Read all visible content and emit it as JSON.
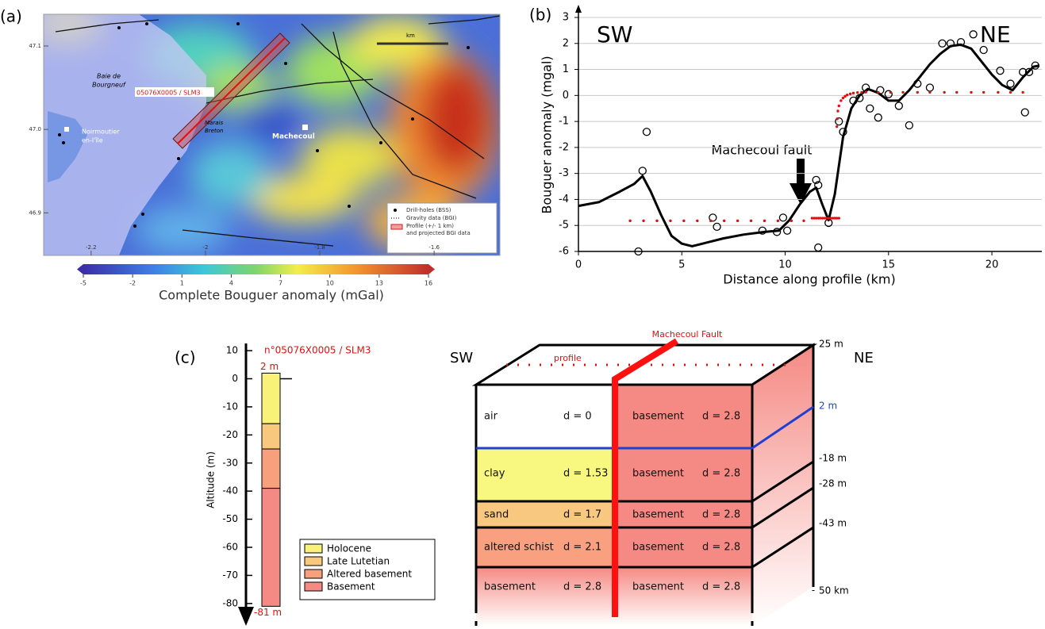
{
  "map": {
    "panel_label": "(a)",
    "bay_label": [
      "Baie de",
      "Bourgneuf"
    ],
    "well_label": "05076X0005 / SLM3",
    "island_label": [
      "Noirmoutier",
      "en-l'île"
    ],
    "marsh_label": [
      "Marais",
      "Breton"
    ],
    "town_label": "Machecoul",
    "scale_label": "km",
    "legend": [
      "Drill-holes (BSS)",
      "Gravity data (BGI)",
      "Profile (+/- 1 km)",
      "and projected BGI data"
    ],
    "lonlim": [
      -2.283,
      -1.485
    ],
    "lonticks": [
      -2.2,
      -2.0,
      -1.8,
      -1.6
    ],
    "latlim": [
      46.849,
      47.138
    ],
    "latticks": [
      47.1,
      {
        "value": 47,
        "label": "47.0"
      },
      46.9
    ],
    "colorbar": {
      "label": "Complete Bouguer anomaly (mGal)",
      "lim": [
        -5,
        16
      ],
      "ticks": [
        -5,
        -2,
        1,
        4,
        7,
        10,
        13,
        16
      ]
    }
  },
  "chart_data": {
    "type": "line",
    "panel_label": "(b)",
    "annotations": [
      "SW",
      "NE",
      "Machecoul fault"
    ],
    "x_label": "Distance along profile (km)",
    "y_label": "Bouguer anomaly (mgal)",
    "xlim": [
      0,
      22.3
    ],
    "xticks": [
      0,
      5,
      10,
      15,
      20
    ],
    "ylim": [
      -6,
      3
    ],
    "yticks": [
      -6,
      -5,
      -4,
      -3,
      -2,
      -1,
      0,
      1,
      2,
      3
    ],
    "grid": true,
    "series": [
      {
        "mode": "line",
        "color": "#000000",
        "x": [
          0,
          1,
          2,
          2.7,
          3.1,
          3.5,
          4,
          4.5,
          5,
          5.5,
          6,
          7,
          8,
          9,
          9.7,
          10.2,
          10.7,
          11.2,
          11.5,
          11.8,
          12.1,
          12.4,
          12.8,
          13.2,
          13.6,
          14,
          14.5,
          15,
          15.5,
          16,
          16.5,
          17,
          17.5,
          18,
          18.5,
          19,
          19.5,
          20,
          20.5,
          21,
          21.5,
          22,
          22.3
        ],
        "values": [
          -4.25,
          -4.1,
          -3.7,
          -3.4,
          -3.1,
          -3.7,
          -4.6,
          -5.4,
          -5.7,
          -5.8,
          -5.7,
          -5.5,
          -5.35,
          -5.25,
          -5.2,
          -4.8,
          -4.2,
          -3.7,
          -3.55,
          -4.2,
          -4.8,
          -3.8,
          -1.6,
          -0.5,
          0,
          0.25,
          0.1,
          -0.2,
          -0.2,
          0.2,
          0.7,
          1.2,
          1.6,
          1.9,
          1.95,
          1.8,
          1.3,
          0.8,
          0.4,
          0.2,
          0.7,
          1.1,
          1.15
        ]
      },
      {
        "mode": "circle",
        "color": "#000000",
        "x": [
          2.9,
          3.1,
          3.3,
          6.5,
          6.7,
          8.9,
          9.6,
          9.9,
          10.1,
          11.5,
          11.6,
          11.6,
          12.1,
          12.6,
          12.8,
          13.3,
          13.6,
          13.9,
          14.1,
          14.5,
          14.6,
          15.0,
          15.5,
          16.0,
          16.4,
          17.0,
          17.6,
          18.0,
          18.5,
          19.1,
          19.6,
          20.4,
          20.9,
          21.5,
          21.6,
          21.8,
          22.1
        ],
        "values": [
          -6.0,
          -2.9,
          -1.4,
          -4.7,
          -5.05,
          -5.2,
          -5.25,
          -4.7,
          -5.2,
          -3.25,
          -3.45,
          -5.85,
          -4.9,
          -1.0,
          -1.4,
          -0.2,
          -0.1,
          0.3,
          -0.5,
          -0.85,
          0.2,
          0.05,
          -0.4,
          -1.15,
          0.45,
          0.3,
          2.0,
          2.0,
          2.05,
          2.35,
          1.75,
          0.95,
          0.45,
          0.9,
          -0.65,
          0.9,
          1.15
        ]
      },
      {
        "mode": "dot",
        "color": "#e01010",
        "x": [
          2.5,
          3.15,
          3.8,
          4.45,
          5.1,
          5.75,
          6.4,
          7.05,
          7.7,
          8.35,
          9.0,
          9.65,
          10.3,
          10.9,
          11.3,
          11.4,
          11.5,
          11.6,
          11.7,
          11.8,
          11.9,
          12.0,
          12.1,
          12.2,
          12.3,
          12.4,
          12.5,
          12.6,
          12.5,
          12.52,
          12.55,
          12.6,
          12.7,
          12.8,
          12.9,
          13.0,
          13.15,
          13.3,
          13.5,
          13.7,
          13.9,
          14.5,
          15.1,
          15.7,
          16.4,
          17.0,
          17.7,
          18.3,
          19.0,
          19.6,
          20.3,
          20.9,
          21.5
        ],
        "values": [
          -4.82,
          -4.82,
          -4.82,
          -4.82,
          -4.82,
          -4.82,
          -4.82,
          -4.82,
          -4.82,
          -4.82,
          -4.82,
          -4.82,
          -4.82,
          -4.82,
          -4.72,
          -4.72,
          -4.72,
          -4.72,
          -4.72,
          -4.72,
          -4.72,
          -4.72,
          -4.72,
          -4.72,
          -4.72,
          -4.72,
          -4.72,
          -4.72,
          -1.2,
          -0.9,
          -0.6,
          -0.4,
          -0.2,
          -0.1,
          -0.03,
          0.02,
          0.06,
          0.09,
          0.11,
          0.12,
          0.13,
          0.12,
          0.12,
          0.12,
          0.12,
          0.12,
          0.12,
          0.12,
          0.12,
          0.12,
          0.12,
          0.12,
          0.12
        ]
      }
    ]
  },
  "diagram": {
    "panel_label": "(c)",
    "well": {
      "title": "n°05076X0005 / SLM3",
      "axis_label": "Altitude (m)",
      "ylim": [
        -84,
        12
      ],
      "yticks": [
        10,
        0,
        -10,
        -20,
        -30,
        -40,
        -50,
        -60,
        -70,
        -80
      ],
      "top_label": "2 m",
      "bottom_label": "-81 m",
      "layers": [
        {
          "name": "Holocene",
          "color": "#f8f27a",
          "top": 2,
          "bottom": -16
        },
        {
          "name": "Late Lutetian",
          "color": "#f8c87c",
          "top": -16,
          "bottom": -25
        },
        {
          "name": "Altered basement",
          "color": "#f8a07c",
          "top": -25,
          "bottom": -39
        },
        {
          "name": "Basement",
          "color": "#f58a84",
          "top": -39,
          "bottom": -81
        }
      ]
    },
    "block": {
      "left_label": "SW",
      "right_label": "NE",
      "fault_label": "Machecoul Fault",
      "profile_label": "profile",
      "rows": [
        [
          "air",
          "d = 0",
          "basement",
          "d = 2.8"
        ],
        [
          "clay",
          "d = 1.53",
          "basement",
          "d = 2.8"
        ],
        [
          "sand",
          "d = 1.7",
          "basement",
          "d = 2.8"
        ],
        [
          "altered schist",
          "d = 2.1",
          "basement",
          "d = 2.8"
        ],
        [
          "basement",
          "d = 2.8",
          "basement",
          "d = 2.8"
        ]
      ],
      "depth_labels": [
        "25 m",
        "2 m",
        "-18 m",
        "-28 m",
        "-43 m",
        "50 km"
      ]
    }
  }
}
